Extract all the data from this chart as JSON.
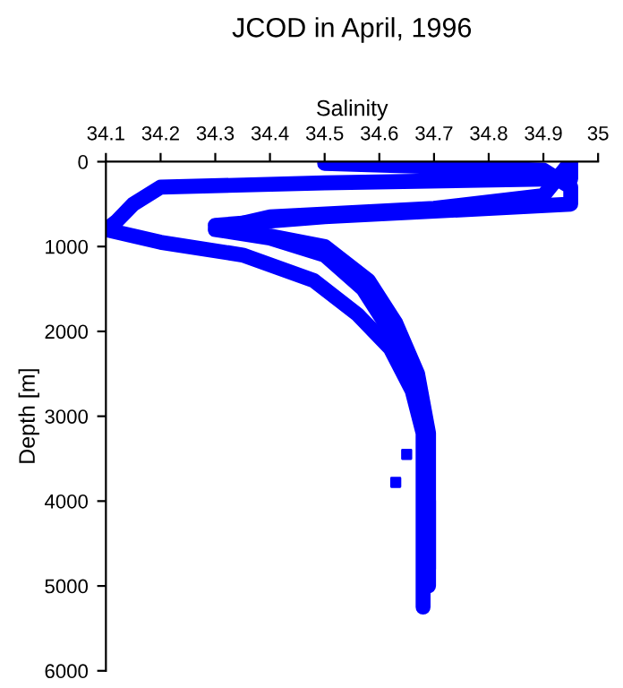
{
  "chart_data": {
    "type": "line",
    "title": "JCOD in April, 1996",
    "xlabel": "Salinity",
    "ylabel": "Depth [m]",
    "xlim": [
      34.1,
      35
    ],
    "xticks": [
      34.1,
      34.2,
      34.3,
      34.4,
      34.5,
      34.6,
      34.7,
      34.8,
      34.9,
      35
    ],
    "ylim": [
      6000,
      0
    ],
    "yticks": [
      0,
      1000,
      2000,
      3000,
      4000,
      5000,
      6000
    ],
    "grid": false,
    "legend": false,
    "marker": "none",
    "line_style": "solid",
    "series": [
      {
        "color": "#0000ff",
        "x": [
          34.95,
          34.95,
          34.5,
          34.2,
          34.15,
          34.12,
          34.1,
          34.2,
          34.35,
          34.48,
          34.56,
          34.62,
          34.66,
          34.68,
          34.68,
          34.68
        ],
        "values": [
          0,
          200,
          250,
          300,
          500,
          700,
          800,
          950,
          1100,
          1400,
          1800,
          2200,
          2700,
          3200,
          4000,
          5250
        ]
      },
      {
        "color": "#0000ff",
        "x": [
          34.95,
          34.9,
          34.7,
          34.4,
          34.3,
          34.4,
          34.5,
          34.57,
          34.62,
          34.66,
          34.68,
          34.69,
          34.69
        ],
        "values": [
          0,
          400,
          550,
          650,
          800,
          900,
          1100,
          1500,
          2000,
          2500,
          3000,
          4000,
          5000
        ]
      },
      {
        "color": "#0000ff",
        "x": [
          34.5,
          34.9,
          34.95,
          34.95,
          34.5,
          34.3,
          34.38,
          34.5,
          34.58,
          34.63,
          34.67,
          34.69,
          34.69
        ],
        "values": [
          20,
          100,
          300,
          500,
          650,
          750,
          850,
          1000,
          1400,
          1900,
          2500,
          3200,
          4800
        ]
      },
      {
        "type": "scatter",
        "marker": "square",
        "color": "#0000ff",
        "x": [
          34.65,
          34.63
        ],
        "values": [
          3450,
          3780
        ]
      }
    ]
  }
}
